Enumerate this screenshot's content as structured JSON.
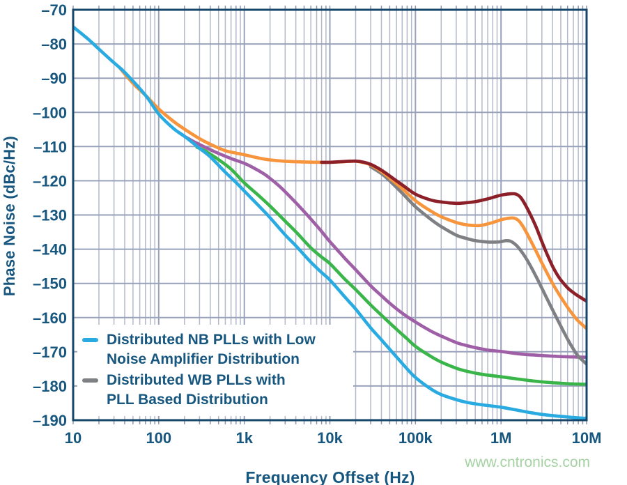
{
  "figure": {
    "xlabel": "Frequency Offset (Hz)",
    "ylabel": "Phase Noise (dBc/Hz)",
    "watermark": "www.cntronics.com"
  },
  "chart_data": {
    "type": "line",
    "title": "",
    "xlabel": "Frequency Offset (Hz)",
    "ylabel": "Phase Noise (dBc/Hz)",
    "x_scale": "log",
    "xlim_hz": [
      10,
      10000000
    ],
    "ylim_dbc_hz": [
      -190,
      -70
    ],
    "grid": "log minor grid on, 10 dB major horizontal grid",
    "legend_position": "inside bottom-left",
    "x_tick_labels": [
      "10",
      "100",
      "1k",
      "10k",
      "100k",
      "1M",
      "10M"
    ],
    "y_tick_labels": [
      "–70",
      "–80",
      "–90",
      "–100",
      "–110",
      "–120",
      "–130",
      "–140",
      "–150",
      "–160",
      "–170",
      "–180",
      "–190"
    ],
    "colors": {
      "axis_border": "#16476b",
      "grid_minor": "#b3b9c9",
      "grid_major": "#99a2bb",
      "tick": "#8e97ae",
      "text": "#17577f",
      "watermark": "#a5d2a2"
    },
    "series": [
      {
        "name": "purple-pll",
        "color": "#9e5fa7",
        "points": [
          [
            170,
            -105.8
          ],
          [
            200,
            -107
          ],
          [
            250,
            -108.4
          ],
          [
            300,
            -109.4
          ],
          [
            400,
            -110.9
          ],
          [
            500,
            -112
          ],
          [
            700,
            -113.5
          ],
          [
            1000,
            -114.9
          ],
          [
            1300,
            -116.3
          ],
          [
            1700,
            -118
          ],
          [
            2000,
            -119.3
          ],
          [
            2500,
            -121.3
          ],
          [
            3000,
            -123.2
          ],
          [
            4000,
            -126.4
          ],
          [
            5000,
            -129
          ],
          [
            6000,
            -131.2
          ],
          [
            8000,
            -134.8
          ],
          [
            10000,
            -137.8
          ],
          [
            15000,
            -142.7
          ],
          [
            20000,
            -146
          ],
          [
            30000,
            -150.7
          ],
          [
            40000,
            -153.6
          ],
          [
            50000,
            -155.8
          ],
          [
            70000,
            -158.7
          ],
          [
            100000,
            -161.3
          ],
          [
            150000,
            -163.9
          ],
          [
            200000,
            -165.4
          ],
          [
            300000,
            -167.3
          ],
          [
            400000,
            -168.2
          ],
          [
            500000,
            -168.8
          ],
          [
            700000,
            -169.5
          ],
          [
            1000000,
            -169.9
          ],
          [
            1500000,
            -170.5
          ],
          [
            2000000,
            -170.8
          ],
          [
            3000000,
            -171.1
          ],
          [
            5000000,
            -171.4
          ],
          [
            7000000,
            -171.5
          ],
          [
            10000000,
            -171.6
          ]
        ]
      },
      {
        "name": "green-pll",
        "color": "#3ab54a",
        "points": [
          [
            280,
            -110.2
          ],
          [
            350,
            -111.3
          ],
          [
            400,
            -112.2
          ],
          [
            500,
            -113.8
          ],
          [
            700,
            -116.6
          ],
          [
            1000,
            -120.6
          ],
          [
            1500,
            -124.5
          ],
          [
            2000,
            -127.4
          ],
          [
            3000,
            -131.8
          ],
          [
            4000,
            -134.9
          ],
          [
            6000,
            -139.6
          ],
          [
            8000,
            -142.3
          ],
          [
            10000,
            -144.2
          ],
          [
            15000,
            -148.8
          ],
          [
            20000,
            -151.8
          ],
          [
            30000,
            -156.3
          ],
          [
            40000,
            -159.3
          ],
          [
            60000,
            -163.4
          ],
          [
            80000,
            -166.2
          ],
          [
            100000,
            -168.4
          ],
          [
            150000,
            -171.3
          ],
          [
            200000,
            -173
          ],
          [
            300000,
            -174.8
          ],
          [
            400000,
            -175.7
          ],
          [
            600000,
            -176.6
          ],
          [
            1000000,
            -177.3
          ],
          [
            1500000,
            -177.9
          ],
          [
            2000000,
            -178.3
          ],
          [
            3000000,
            -178.8
          ],
          [
            5000000,
            -179.2
          ],
          [
            7000000,
            -179.4
          ],
          [
            10000000,
            -179.5
          ]
        ]
      },
      {
        "name": "distributed-wb-plls-pll-based-distribution",
        "color": "#7e8083",
        "legend": {
          "line1": "Distributed WB PLLs with",
          "line2": "PLL Based Distribution"
        },
        "points": [
          [
            30000,
            -115.9
          ],
          [
            40000,
            -117.9
          ],
          [
            50000,
            -120
          ],
          [
            70000,
            -123.6
          ],
          [
            100000,
            -127.6
          ],
          [
            150000,
            -131.2
          ],
          [
            200000,
            -133.4
          ],
          [
            300000,
            -135.9
          ],
          [
            400000,
            -136.9
          ],
          [
            500000,
            -137.5
          ],
          [
            700000,
            -137.9
          ],
          [
            900000,
            -137.9
          ],
          [
            1000000,
            -137.8
          ],
          [
            1150000,
            -137.5
          ],
          [
            1300000,
            -137.7
          ],
          [
            1500000,
            -138.8
          ],
          [
            1700000,
            -140.4
          ],
          [
            2000000,
            -143
          ],
          [
            2500000,
            -147.4
          ],
          [
            3000000,
            -151.4
          ],
          [
            3500000,
            -154.8
          ],
          [
            4000000,
            -157.7
          ],
          [
            5000000,
            -162.5
          ],
          [
            6000000,
            -166.3
          ],
          [
            7000000,
            -169.2
          ],
          [
            8000000,
            -171.3
          ],
          [
            10000000,
            -173.6
          ]
        ]
      },
      {
        "name": "orange-pll",
        "color": "#f7953d",
        "points": [
          [
            35,
            -87
          ],
          [
            50,
            -91.5
          ],
          [
            70,
            -95
          ],
          [
            100,
            -99
          ],
          [
            150,
            -102.7
          ],
          [
            200,
            -104.9
          ],
          [
            300,
            -107.7
          ],
          [
            400,
            -109.3
          ],
          [
            600,
            -111.2
          ],
          [
            800,
            -111.9
          ],
          [
            1000,
            -112.4
          ],
          [
            1500,
            -113.4
          ],
          [
            2000,
            -113.9
          ],
          [
            3000,
            -114.3
          ],
          [
            5000,
            -114.5
          ],
          [
            8000,
            -114.6
          ],
          [
            10000,
            -114.6
          ],
          [
            15000,
            -114.4
          ],
          [
            20000,
            -114.3
          ],
          [
            25000,
            -114.7
          ],
          [
            30000,
            -115.4
          ],
          [
            40000,
            -117.3
          ],
          [
            50000,
            -119.2
          ],
          [
            70000,
            -122.3
          ],
          [
            100000,
            -125.8
          ],
          [
            150000,
            -128.8
          ],
          [
            200000,
            -130.5
          ],
          [
            300000,
            -132.2
          ],
          [
            400000,
            -132.9
          ],
          [
            500000,
            -133.1
          ],
          [
            600000,
            -133
          ],
          [
            800000,
            -132.2
          ],
          [
            1000000,
            -131.4
          ],
          [
            1200000,
            -131
          ],
          [
            1400000,
            -130.9
          ],
          [
            1600000,
            -131.6
          ],
          [
            1800000,
            -133.3
          ],
          [
            2000000,
            -135.3
          ],
          [
            2500000,
            -140
          ],
          [
            3000000,
            -144
          ],
          [
            4000000,
            -150
          ],
          [
            5000000,
            -154
          ],
          [
            6000000,
            -157
          ],
          [
            7000000,
            -159.3
          ],
          [
            8000000,
            -161
          ],
          [
            10000000,
            -163.2
          ]
        ]
      },
      {
        "name": "maroon-pll",
        "color": "#8c2028",
        "points": [
          [
            8000,
            -114.6
          ],
          [
            10000,
            -114.6
          ],
          [
            15000,
            -114.35
          ],
          [
            20000,
            -114.25
          ],
          [
            25000,
            -114.6
          ],
          [
            30000,
            -115.2
          ],
          [
            40000,
            -116.9
          ],
          [
            50000,
            -118.6
          ],
          [
            70000,
            -121.2
          ],
          [
            100000,
            -123.9
          ],
          [
            150000,
            -125.6
          ],
          [
            200000,
            -126.2
          ],
          [
            300000,
            -126.6
          ],
          [
            400000,
            -126.4
          ],
          [
            500000,
            -126.1
          ],
          [
            700000,
            -125.3
          ],
          [
            900000,
            -124.5
          ],
          [
            1100000,
            -124
          ],
          [
            1300000,
            -123.8
          ],
          [
            1500000,
            -123.9
          ],
          [
            1700000,
            -124.9
          ],
          [
            2000000,
            -127.8
          ],
          [
            2500000,
            -132.8
          ],
          [
            3000000,
            -137.8
          ],
          [
            3500000,
            -141.8
          ],
          [
            4000000,
            -145
          ],
          [
            4500000,
            -147.3
          ],
          [
            5000000,
            -149
          ],
          [
            6000000,
            -151.3
          ],
          [
            7000000,
            -152.7
          ],
          [
            8000000,
            -153.7
          ],
          [
            10000000,
            -155.2
          ]
        ]
      },
      {
        "name": "distributed-nb-plls-low-noise-amplifier-distribution",
        "color": "#29abe2",
        "legend": {
          "line1": "Distributed NB PLLs with Low",
          "line2": "Noise Amplifier Distribution"
        },
        "points": [
          [
            10,
            -75
          ],
          [
            15,
            -78.6
          ],
          [
            20,
            -81.5
          ],
          [
            30,
            -85.5
          ],
          [
            40,
            -88.3
          ],
          [
            70,
            -95
          ],
          [
            100,
            -100.5
          ],
          [
            150,
            -104.8
          ],
          [
            200,
            -107
          ],
          [
            300,
            -110.5
          ],
          [
            400,
            -113
          ],
          [
            600,
            -117.5
          ],
          [
            800,
            -120.5
          ],
          [
            1000,
            -123
          ],
          [
            1500,
            -127.5
          ],
          [
            2000,
            -130.8
          ],
          [
            3000,
            -135.8
          ],
          [
            4000,
            -139
          ],
          [
            6000,
            -143.8
          ],
          [
            8000,
            -146.8
          ],
          [
            10000,
            -149
          ],
          [
            15000,
            -154
          ],
          [
            20000,
            -157.5
          ],
          [
            30000,
            -163
          ],
          [
            40000,
            -166.5
          ],
          [
            60000,
            -171.5
          ],
          [
            80000,
            -175
          ],
          [
            100000,
            -177.5
          ],
          [
            150000,
            -180.8
          ],
          [
            200000,
            -182.5
          ],
          [
            300000,
            -184
          ],
          [
            400000,
            -184.8
          ],
          [
            600000,
            -185.5
          ],
          [
            1000000,
            -186.2
          ],
          [
            1500000,
            -187
          ],
          [
            2000000,
            -187.6
          ],
          [
            3000000,
            -188.3
          ],
          [
            5000000,
            -188.9
          ],
          [
            7000000,
            -189.2
          ],
          [
            10000000,
            -189.5
          ]
        ]
      }
    ]
  }
}
